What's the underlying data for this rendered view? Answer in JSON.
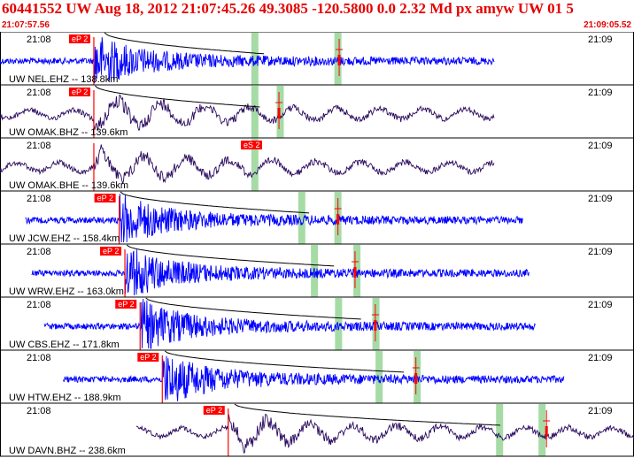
{
  "header": {
    "title": "60441552 UW Aug 18, 2012 21:07:45.26    49.3085 -120.5800  0.0 2.32 Md px amyw UW 01    5",
    "start_time": "21:07:57.56",
    "end_time": "21:09:05.52"
  },
  "colors": {
    "ehz": "#0000ff",
    "bh": "#2a0a5e",
    "pick": "#ff0000",
    "window": "#a6dba6",
    "frame": "#000000"
  },
  "time_labels": {
    "left": "21:08",
    "right": "21:09"
  },
  "traces": [
    {
      "station_label": "UW NEL.EHZ -- 138.8km",
      "pick_label": "eP 2",
      "trace_type": "EHZ",
      "data_start": 0.0,
      "data_end": 0.78,
      "pick_time": 0.148,
      "window_1": 0.402,
      "window_2": 0.533,
      "amp_pick": 0.535,
      "envelope_start": 0.165,
      "envelope_end": 0.42
    },
    {
      "station_label": "UW OMAK.BHZ -- 139.6km",
      "pick_label": "eP 2",
      "trace_type": "BH",
      "data_start": 0.0,
      "data_end": 0.78,
      "pick_time": 0.148,
      "window_1": 0.402,
      "window_2": 0.442,
      "amp_pick": 0.44,
      "envelope_start": 0.15,
      "envelope_end": 0.41
    },
    {
      "station_label": "UW OMAK.BHE -- 139.6km",
      "pick_label": "eS 2",
      "trace_type": "BH",
      "data_start": 0.0,
      "data_end": 0.78,
      "pick_time": 0.148,
      "window_1": 0.402,
      "window_2": null,
      "amp_pick": null,
      "s_pick": 0.405,
      "envelope_start": null,
      "envelope_end": null
    },
    {
      "station_label": "UW JCW.EHZ -- 158.4km",
      "pick_label": "eP 2",
      "trace_type": "EHZ",
      "data_start": 0.04,
      "data_end": 0.825,
      "pick_time": 0.188,
      "window_1": 0.476,
      "window_2": 0.533,
      "amp_pick": 0.533,
      "s_pick": 0.478,
      "envelope_start": 0.19,
      "envelope_end": 0.49
    },
    {
      "station_label": "UW WRW.EHZ -- 163.0km",
      "pick_label": "eP 2",
      "trace_type": "EHZ",
      "data_start": 0.05,
      "data_end": 0.835,
      "pick_time": 0.197,
      "window_1": 0.496,
      "window_2": 0.563,
      "amp_pick": 0.56,
      "envelope_start": 0.2,
      "envelope_end": 0.53
    },
    {
      "station_label": "UW CBS.EHZ -- 171.8km",
      "pick_label": "eP 2",
      "trace_type": "EHZ",
      "data_start": 0.07,
      "data_end": 0.845,
      "pick_time": 0.221,
      "window_1": 0.534,
      "window_2": 0.593,
      "amp_pick": 0.592,
      "envelope_start": 0.23,
      "envelope_end": 0.57
    },
    {
      "station_label": "UW HTW.EHZ -- 188.9km",
      "pick_label": "eP 2",
      "trace_type": "EHZ",
      "data_start": 0.1,
      "data_end": 0.89,
      "pick_time": 0.256,
      "window_1": 0.598,
      "window_2": 0.658,
      "amp_pick": 0.656,
      "envelope_start": 0.26,
      "envelope_end": 0.64
    },
    {
      "station_label": "UW DAVN.BHZ -- 238.6km",
      "pick_label": "eP 2",
      "trace_type": "BH",
      "data_start": 0.215,
      "data_end": 1.0,
      "pick_time": 0.36,
      "window_1": 0.788,
      "window_2": 0.855,
      "amp_pick": 0.862,
      "envelope_start": 0.37,
      "envelope_end": 0.79
    }
  ]
}
